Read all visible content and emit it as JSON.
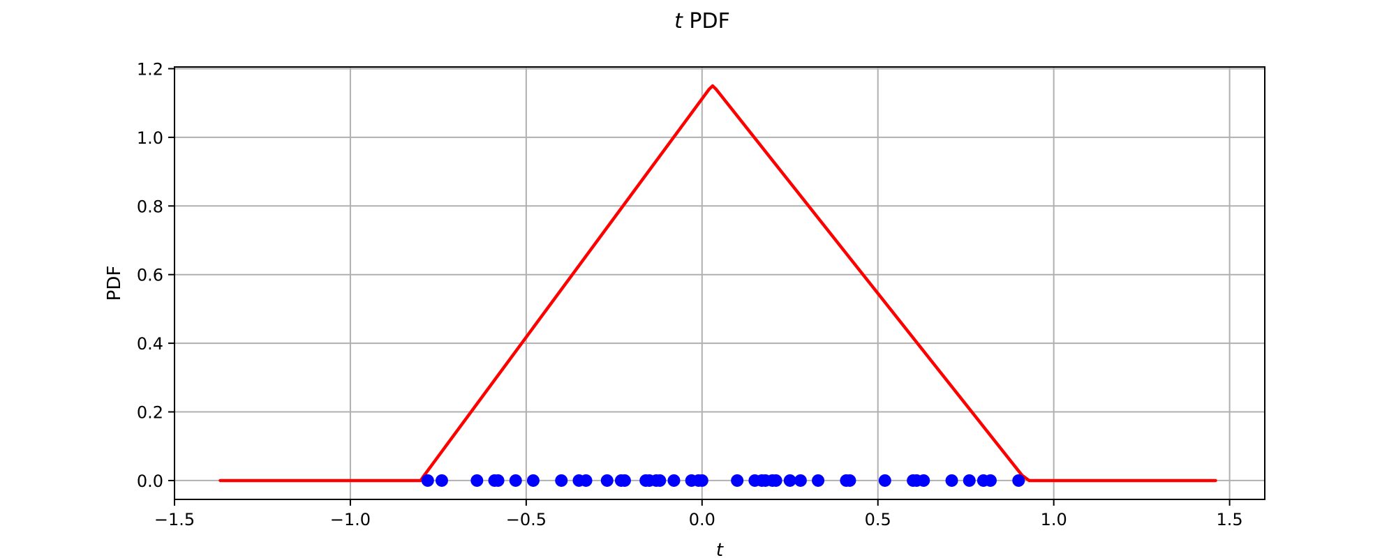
{
  "chart_data": {
    "type": "line",
    "title": {
      "italic_part": "t",
      "text_part": " PDF"
    },
    "xlabel": "t",
    "ylabel": "PDF",
    "xlim": [
      -1.5,
      1.6
    ],
    "ylim": [
      -0.055,
      1.205
    ],
    "xticks": [
      -1.5,
      -1.0,
      -0.5,
      0.0,
      0.5,
      1.0,
      1.5
    ],
    "xtick_labels": [
      "−1.5",
      "−1.0",
      "−0.5",
      "0.0",
      "0.5",
      "1.0",
      "1.5"
    ],
    "yticks": [
      0.0,
      0.2,
      0.4,
      0.6,
      0.8,
      1.0,
      1.2
    ],
    "ytick_labels": [
      "0.0",
      "0.2",
      "0.4",
      "0.6",
      "0.8",
      "1.0",
      "1.2"
    ],
    "grid": true,
    "series": [
      {
        "type": "line",
        "color": "#ff0000",
        "x": [
          -1.37,
          -0.8,
          -0.79,
          0.02,
          0.03,
          0.04,
          0.91,
          0.93,
          1.46
        ],
        "y": [
          0.0,
          0.0,
          0.015,
          1.14,
          1.15,
          1.14,
          0.015,
          0.0,
          0.0
        ]
      },
      {
        "type": "scatter",
        "color": "#0000ff",
        "x": [
          -0.78,
          -0.74,
          -0.64,
          -0.59,
          -0.58,
          -0.53,
          -0.48,
          -0.4,
          -0.35,
          -0.33,
          -0.27,
          -0.23,
          -0.22,
          -0.16,
          -0.15,
          -0.13,
          -0.12,
          -0.08,
          -0.03,
          -0.01,
          0.0,
          0.1,
          0.15,
          0.17,
          0.18,
          0.2,
          0.21,
          0.25,
          0.28,
          0.33,
          0.41,
          0.42,
          0.52,
          0.6,
          0.61,
          0.63,
          0.71,
          0.76,
          0.8,
          0.82,
          0.9
        ],
        "y": [
          0,
          0,
          0,
          0,
          0,
          0,
          0,
          0,
          0,
          0,
          0,
          0,
          0,
          0,
          0,
          0,
          0,
          0,
          0,
          0,
          0,
          0,
          0,
          0,
          0,
          0,
          0,
          0,
          0,
          0,
          0,
          0,
          0,
          0,
          0,
          0,
          0,
          0,
          0,
          0,
          0
        ]
      }
    ]
  }
}
